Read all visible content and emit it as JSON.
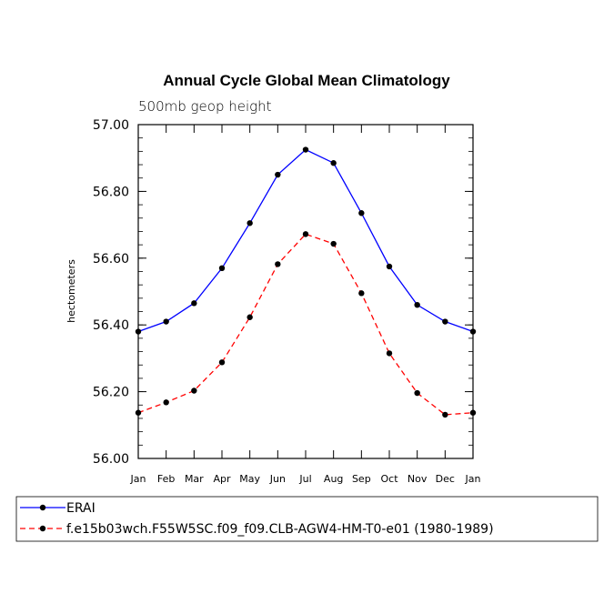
{
  "chart_data": {
    "type": "line",
    "title": "Annual Cycle Global Mean Climatology",
    "subtitle": "500mb geop height",
    "xlabel": "",
    "ylabel": "hectometers",
    "categories": [
      "Jan",
      "Feb",
      "Mar",
      "Apr",
      "May",
      "Jun",
      "Jul",
      "Aug",
      "Sep",
      "Oct",
      "Nov",
      "Dec",
      "Jan"
    ],
    "ylim": [
      56.0,
      57.0
    ],
    "yticks": [
      56.0,
      56.2,
      56.4,
      56.6,
      56.8,
      57.0
    ],
    "ytick_labels": [
      "56.00",
      "56.20",
      "56.40",
      "56.60",
      "56.80",
      "57.00"
    ],
    "series": [
      {
        "name": "ERAI",
        "color": "#0000ff",
        "style": "solid",
        "values": [
          56.38,
          56.41,
          56.465,
          56.57,
          56.705,
          56.85,
          56.925,
          56.885,
          56.735,
          56.575,
          56.46,
          56.41,
          56.38
        ]
      },
      {
        "name": "f.e15b03wch.F55W5SC.f09_f09.CLB-AGW4-HM-T0-e01 (1980-1989)",
        "color": "#ff0000",
        "style": "dashed",
        "values": [
          56.137,
          56.168,
          56.203,
          56.288,
          56.423,
          56.582,
          56.672,
          56.643,
          56.495,
          56.315,
          56.196,
          56.131,
          56.137
        ]
      }
    ],
    "legend_position": "bottom"
  }
}
